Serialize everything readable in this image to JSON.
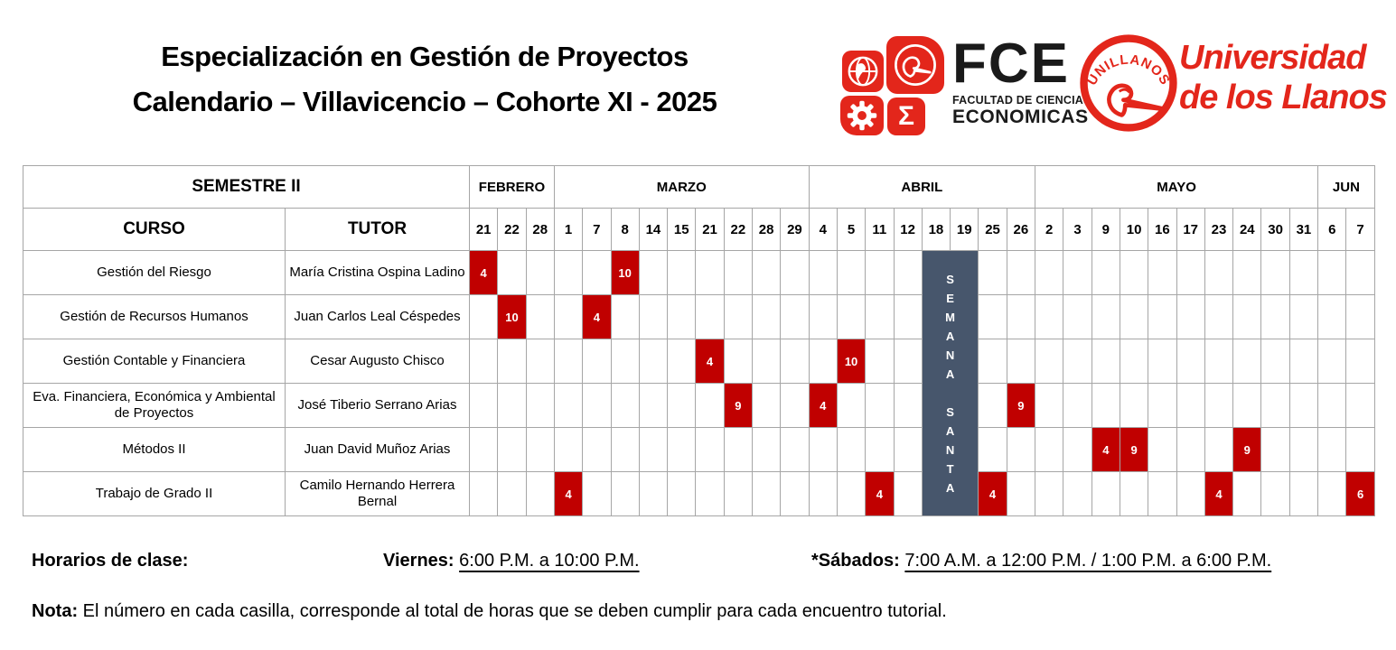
{
  "title": {
    "line1": "Especialización en Gestión de Proyectos",
    "line2": "Calendario – Villavicencio – Cohorte XI - 2025"
  },
  "logos": {
    "fce": {
      "acronym": "FCE",
      "caption_line1": "FACULTAD DE CIENCIAS",
      "caption_line2": "ECONOMICAS",
      "sigma": "Σ"
    },
    "unillanos": {
      "seal_text": "UNILLANOS",
      "name_line1": "Universidad",
      "name_line2": "de los Llanos"
    }
  },
  "table": {
    "semester_label": "SEMESTRE II",
    "course_header": "CURSO",
    "tutor_header": "TUTOR",
    "months": [
      {
        "name": "FEBRERO",
        "days": [
          21,
          22,
          28
        ]
      },
      {
        "name": "MARZO",
        "days": [
          1,
          7,
          8,
          14,
          15,
          21,
          22,
          28,
          29
        ]
      },
      {
        "name": "ABRIL",
        "days": [
          4,
          5,
          11,
          12,
          18,
          19,
          25,
          26
        ]
      },
      {
        "name": "MAYO",
        "days": [
          2,
          3,
          9,
          10,
          16,
          17,
          23,
          24,
          30,
          31
        ]
      },
      {
        "name": "JUN",
        "days": [
          6,
          7
        ]
      }
    ],
    "holiday": {
      "words": [
        "SEMANA",
        "SANTA"
      ],
      "month": "ABRIL",
      "days": [
        18,
        19
      ]
    },
    "rows": [
      {
        "course": "Gestión del Riesgo",
        "tutor": "María Cristina Ospina Ladino",
        "sessions": [
          {
            "month": "FEBRERO",
            "day": 21,
            "hours": 4
          },
          {
            "month": "MARZO",
            "day": 8,
            "hours": 10
          }
        ]
      },
      {
        "course": "Gestión de Recursos Humanos",
        "tutor": "Juan Carlos Leal Céspedes",
        "sessions": [
          {
            "month": "FEBRERO",
            "day": 22,
            "hours": 10
          },
          {
            "month": "MARZO",
            "day": 7,
            "hours": 4
          }
        ]
      },
      {
        "course": "Gestión Contable y Financiera",
        "tutor": "Cesar Augusto Chisco",
        "sessions": [
          {
            "month": "MARZO",
            "day": 21,
            "hours": 4
          },
          {
            "month": "ABRIL",
            "day": 5,
            "hours": 10
          }
        ]
      },
      {
        "course": "Eva. Financiera, Económica y Ambiental de Proyectos",
        "tutor": "José Tiberio Serrano Arias",
        "sessions": [
          {
            "month": "MARZO",
            "day": 22,
            "hours": 9
          },
          {
            "month": "ABRIL",
            "day": 4,
            "hours": 4
          },
          {
            "month": "ABRIL",
            "day": 26,
            "hours": 9
          }
        ]
      },
      {
        "course": "Métodos II",
        "tutor": "Juan David Muñoz Arias",
        "sessions": [
          {
            "month": "MAYO",
            "day": 9,
            "hours": 4
          },
          {
            "month": "MAYO",
            "day": 10,
            "hours": 9
          },
          {
            "month": "MAYO",
            "day": 24,
            "hours": 9
          }
        ]
      },
      {
        "course": "Trabajo de Grado II",
        "tutor": "Camilo Hernando Herrera Bernal",
        "sessions": [
          {
            "month": "MARZO",
            "day": 1,
            "hours": 4
          },
          {
            "month": "ABRIL",
            "day": 11,
            "hours": 4
          },
          {
            "month": "ABRIL",
            "day": 25,
            "hours": 4
          },
          {
            "month": "MAYO",
            "day": 23,
            "hours": 4
          },
          {
            "month": "JUN",
            "day": 7,
            "hours": 6
          }
        ]
      }
    ]
  },
  "footer": {
    "schedule_label": "Horarios de clase:",
    "friday_label": "Viernes:",
    "friday_time": "6:00 P.M. a 10:00 P.M.",
    "saturday_label": "*Sábados:",
    "saturday_time": "7:00 A.M. a 12:00 P.M. / 1:00 P.M. a 6:00 P.M.",
    "note_label": "Nota:",
    "note_text": "El número en cada casilla, corresponde al total de horas que se deben cumplir para cada encuentro tutorial."
  },
  "colors": {
    "session_red": "#C00000",
    "holiday_slate": "#47566C",
    "logo_red": "#E3261B",
    "border_gray": "#A6A6A6"
  }
}
